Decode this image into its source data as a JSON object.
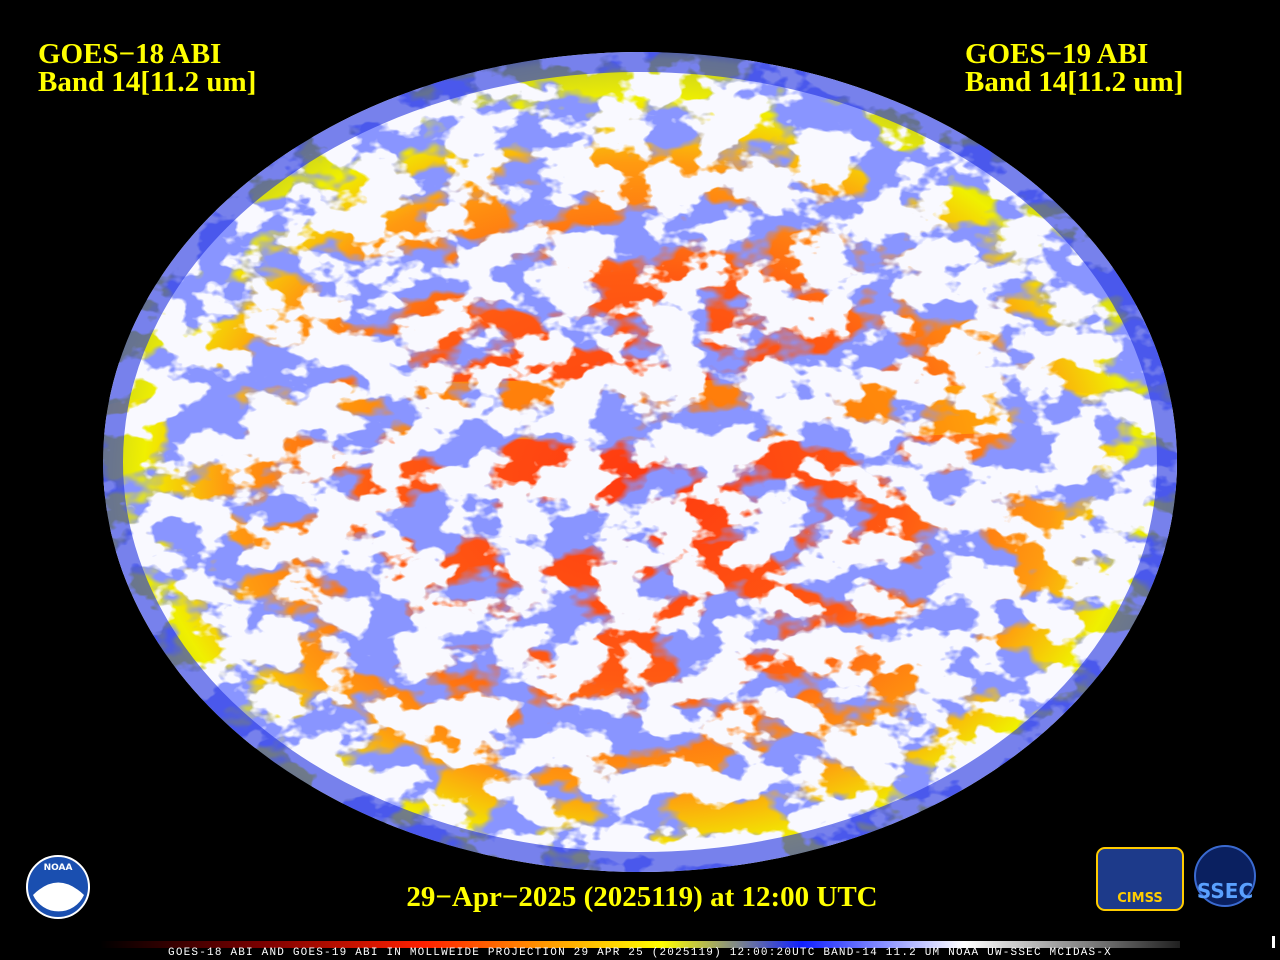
{
  "header": {
    "left": {
      "title": "GOES−18 ABI",
      "band": "Band 14[11.2 um]"
    },
    "right": {
      "title": "GOES−19 ABI",
      "band": "Band 14[11.2 um]"
    }
  },
  "timestamp": "29−Apr−2025 (2025119) at 12:00 UTC",
  "footer": "GOES-18 ABI AND GOES-19 ABI IN MOLLWEIDE PROJECTION 29 APR 25 (2025119) 12:00:20UTC BAND-14 11.2 UM NOAA UW-SSEC MCIDAS-X",
  "logos": {
    "noaa": "NOAA",
    "cimss": "CIMSS",
    "ssec": "SSEC"
  }
}
